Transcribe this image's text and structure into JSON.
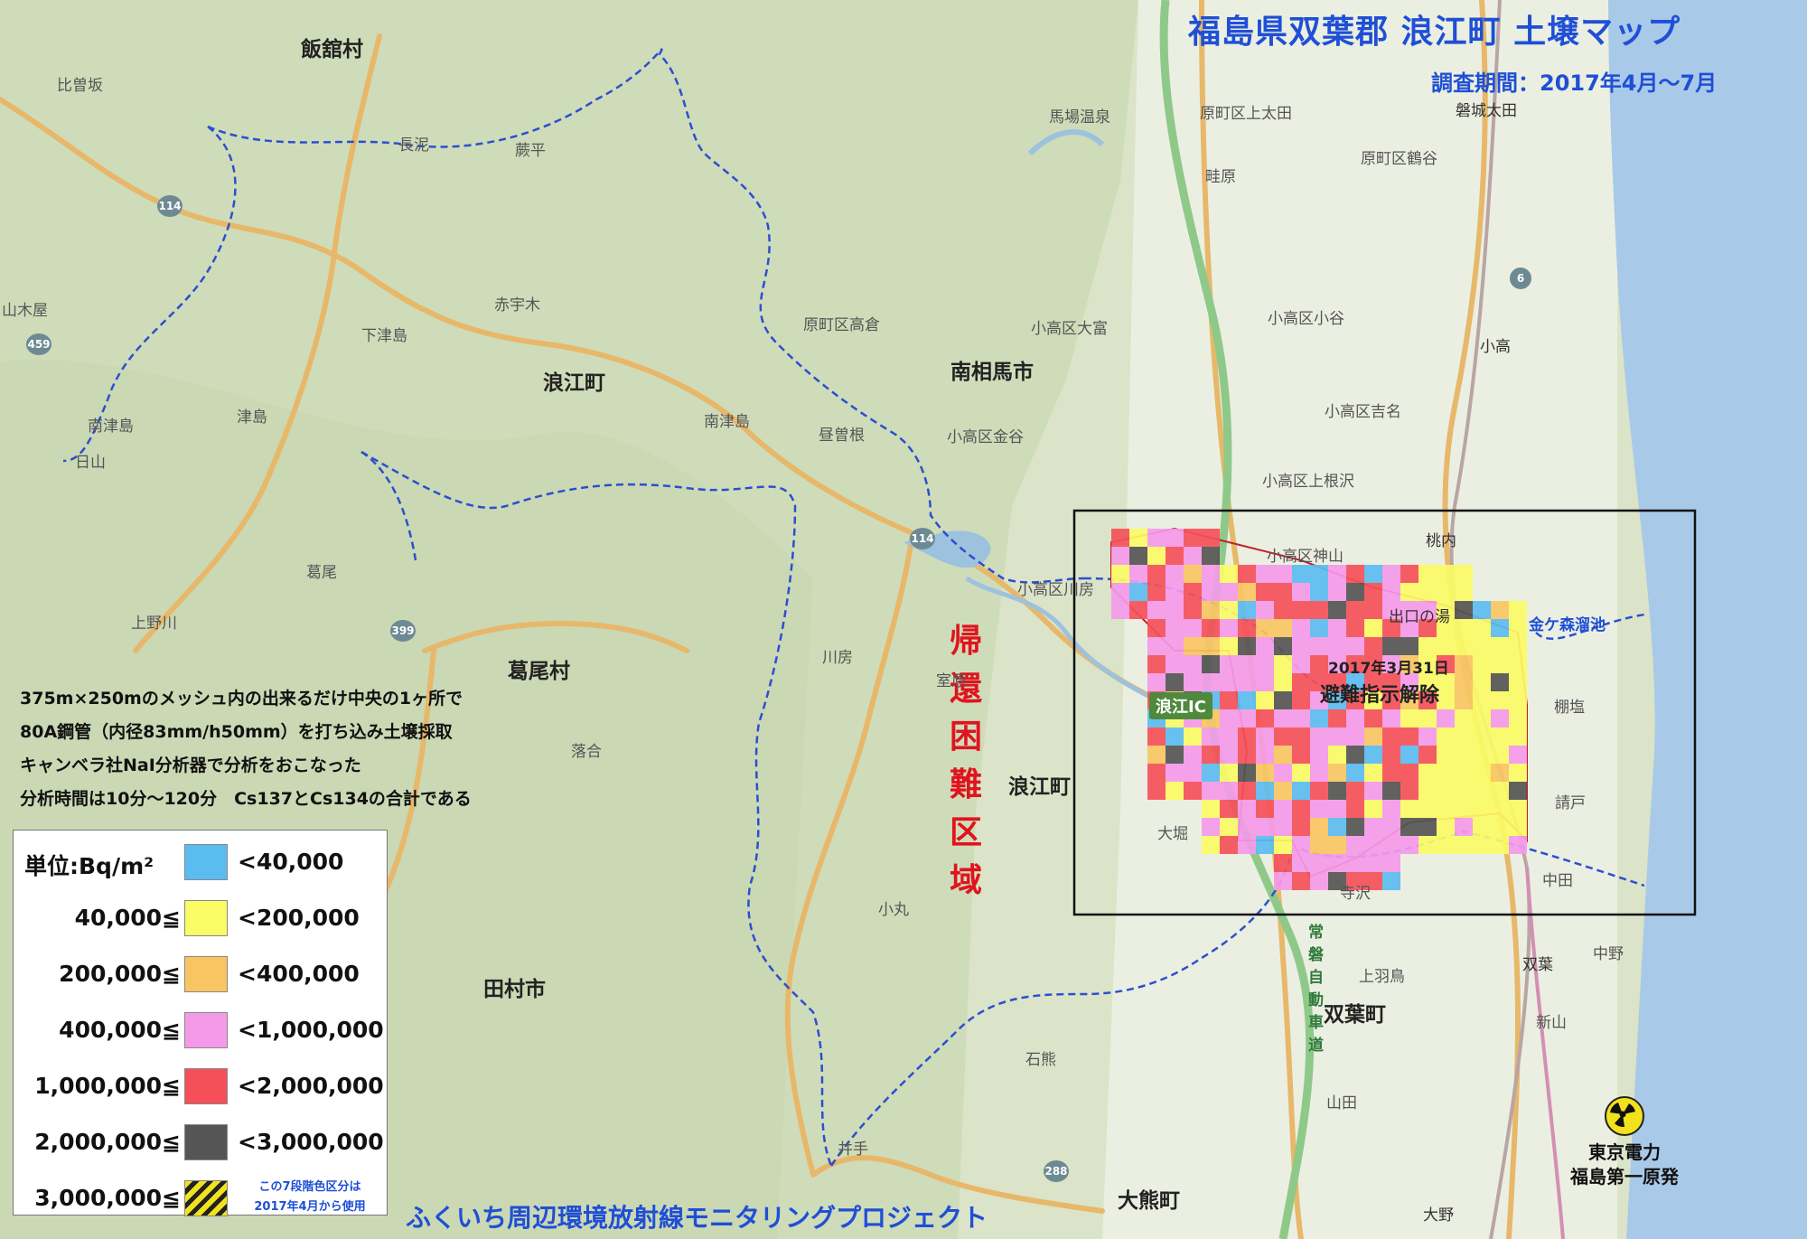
{
  "title": "福島県双葉郡 浪江町 土壌マップ",
  "survey_period": "調査期間：2017年4月～7月",
  "zone_label": [
    "帰",
    "還",
    "困",
    "難",
    "区",
    "域"
  ],
  "methodology": [
    "375m×250mのメッシュ内の出来るだけ中央の1ヶ所で",
    "80A鋼管（内径83mm/h50mm）を打ち込み土壌採取",
    "キャンベラ社NaI分析器で分析をおこなった",
    "分析時間は10分～120分　Cs137とCs134の合計である"
  ],
  "legend": {
    "unit": "単位:Bq/m²",
    "rows": [
      {
        "from": "",
        "to": "<40,000",
        "color": "#5bbcf0"
      },
      {
        "from": "40,000≦",
        "to": "<200,000",
        "color": "#fbfb66"
      },
      {
        "from": "200,000≦",
        "to": "<400,000",
        "color": "#f9c563"
      },
      {
        "from": "400,000≦",
        "to": "<1,000,000",
        "color": "#f49ae9"
      },
      {
        "from": "1,000,000≦",
        "to": "<2,000,000",
        "color": "#f5505a"
      },
      {
        "from": "2,000,000≦",
        "to": "<3,000,000",
        "color": "#555555"
      },
      {
        "from": "3,000,000≦",
        "to": "",
        "color": "hatched-yellow-black"
      }
    ],
    "note": [
      "この7段階色区分は",
      "2017年4月から使用"
    ]
  },
  "project": "ふくいち周辺環境放射線モニタリングプロジェクト",
  "annotations": {
    "lift_date": "2017年3月31日",
    "lift_text": "避難指示解除"
  },
  "interchange": "浪江IC",
  "power_plant": [
    "東京電力",
    "福島第一原発"
  ],
  "municipalities": {
    "iitate": "飯舘村",
    "minamisoma": "南相馬市",
    "namie_west": "浪江町",
    "namie_east": "浪江町",
    "katsurao": "葛尾村",
    "tamura": "田村市",
    "futaba": "双葉町",
    "okuma": "大熊町"
  },
  "places": {
    "hisoda": "比曽坂",
    "osaka": "長泥",
    "kurahira": "蕨平",
    "yamakiya": "山木屋",
    "akauki": "赤宇木",
    "shimotsushima": "下津島",
    "tsushima": "津島",
    "minamitsushima": "南津島",
    "nittasan": "日山",
    "minamitsushima2": "南津島",
    "hirusone": "昼曽根",
    "takakura": "原町区高倉",
    "kaneya": "小高区金谷",
    "odaka_omiya": "小高区大富",
    "baba_onsen": "馬場温泉",
    "ueota": "原町区上太田",
    "tsurugaya": "原町区鶴谷",
    "azehara": "畦原",
    "iwaki_ota": "磐城太田",
    "odaka_otani": "小高区小谷",
    "odaka": "小高",
    "odaka_yoshina": "小高区吉名",
    "odaka_kaminegisawa": "小高区上根沢",
    "odaka_kamiyama": "小高区神山",
    "momouchi": "桃内",
    "odaka_kawabusa": "小高区川房",
    "kawabusa": "川房",
    "kuzuo": "葛尾",
    "uenokawa": "上野川",
    "murohara": "室原",
    "ochiai": "落合",
    "omaru": "小丸",
    "ishikuma": "石熊",
    "ide": "井手",
    "ohori": "大堀",
    "terasawa": "寺沢",
    "kaminohatori": "上羽鳥",
    "futaba_st": "双葉",
    "nakano": "中野",
    "shinzan": "新山",
    "yamada": "山田",
    "nakata": "中田",
    "kiyohashi": "請戸",
    "tanashio": "棚塩",
    "kanegamori": "金ケ森溜池",
    "dekuchinoyu": "出口の湯",
    "onoda": "大野",
    "joban_road": [
      "常",
      "磐",
      "自",
      "動",
      "車",
      "道"
    ]
  },
  "routes": [
    "114",
    "114",
    "459",
    "399",
    "6",
    "288"
  ]
}
